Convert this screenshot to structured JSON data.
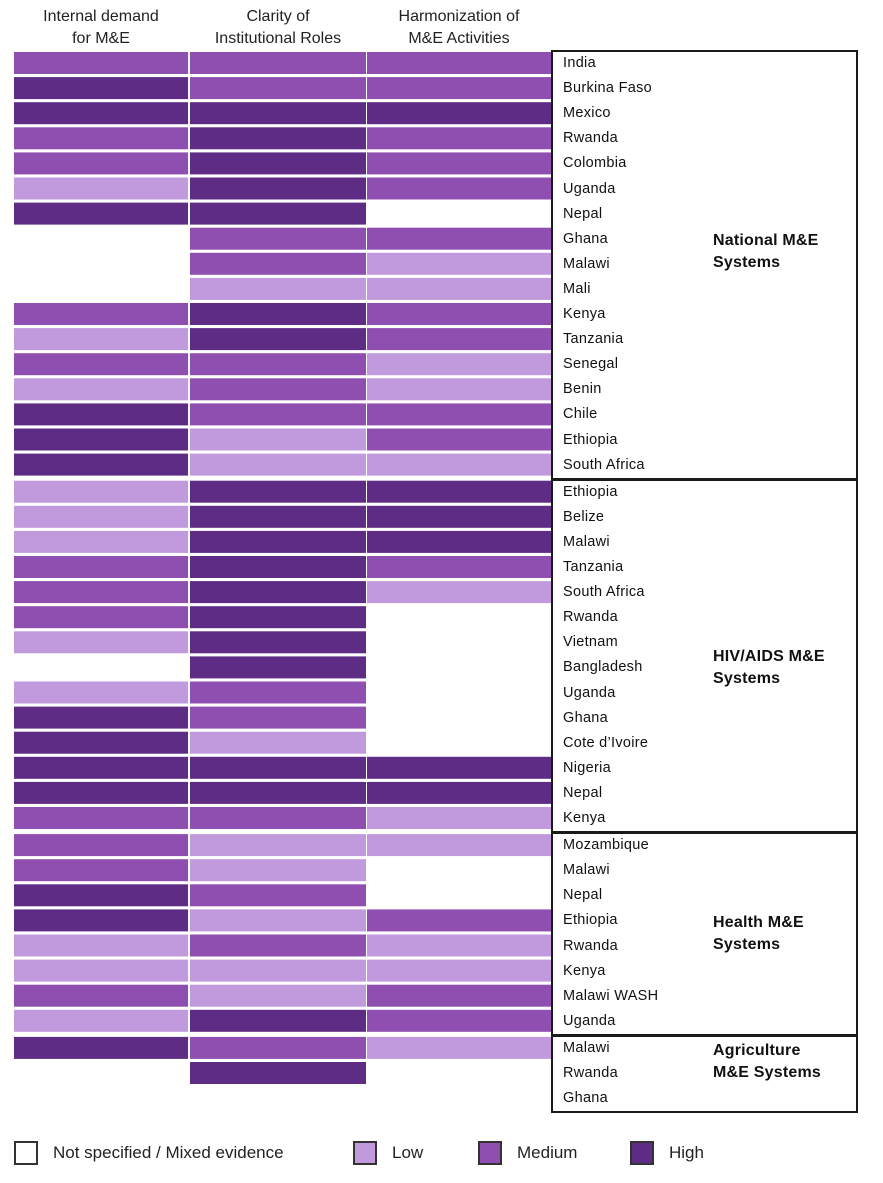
{
  "chart_data": {
    "type": "heatmap",
    "columns": [
      [
        "Internal demand",
        "for M&E"
      ],
      [
        "Clarity of",
        "Institutional Roles"
      ],
      [
        "Harmonization of",
        "M&E Activities"
      ]
    ],
    "levels": [
      "Not specified / Mixed evidence",
      "Low",
      "Medium",
      "High"
    ],
    "colors": [
      "#ffffff",
      "#c199dd",
      "#8f4fb0",
      "#5e2b85"
    ],
    "groups": [
      {
        "label": [
          "National M&E",
          "Systems"
        ],
        "rows": [
          {
            "country": "India",
            "values": [
              2,
              2,
              2
            ]
          },
          {
            "country": "Burkina Faso",
            "values": [
              3,
              2,
              2
            ]
          },
          {
            "country": "Mexico",
            "values": [
              3,
              3,
              3
            ]
          },
          {
            "country": "Rwanda",
            "values": [
              2,
              3,
              2
            ]
          },
          {
            "country": "Colombia",
            "values": [
              2,
              3,
              2
            ]
          },
          {
            "country": "Uganda",
            "values": [
              1,
              3,
              2
            ]
          },
          {
            "country": "Nepal",
            "values": [
              3,
              3,
              0
            ]
          },
          {
            "country": "Ghana",
            "values": [
              0,
              2,
              2
            ]
          },
          {
            "country": "Malawi",
            "values": [
              0,
              2,
              1
            ]
          },
          {
            "country": "Mali",
            "values": [
              0,
              1,
              1
            ]
          },
          {
            "country": "Kenya",
            "values": [
              2,
              3,
              2
            ]
          },
          {
            "country": "Tanzania",
            "values": [
              1,
              3,
              2
            ]
          },
          {
            "country": "Senegal",
            "values": [
              2,
              2,
              1
            ]
          },
          {
            "country": "Benin",
            "values": [
              1,
              2,
              1
            ]
          },
          {
            "country": "Chile",
            "values": [
              3,
              2,
              2
            ]
          },
          {
            "country": "Ethiopia",
            "values": [
              3,
              1,
              2
            ]
          },
          {
            "country": "South Africa",
            "values": [
              3,
              1,
              1
            ]
          }
        ]
      },
      {
        "label": [
          "HIV/AIDS M&E",
          "Systems"
        ],
        "rows": [
          {
            "country": "Ethiopia",
            "values": [
              1,
              3,
              3
            ]
          },
          {
            "country": "Belize",
            "values": [
              1,
              3,
              3
            ]
          },
          {
            "country": "Malawi",
            "values": [
              1,
              3,
              3
            ]
          },
          {
            "country": "Tanzania",
            "values": [
              2,
              3,
              2
            ]
          },
          {
            "country": "South Africa",
            "values": [
              2,
              3,
              1
            ]
          },
          {
            "country": "Rwanda",
            "values": [
              2,
              3,
              0
            ]
          },
          {
            "country": "Vietnam",
            "values": [
              1,
              3,
              0
            ]
          },
          {
            "country": "Bangladesh",
            "values": [
              0,
              3,
              0
            ]
          },
          {
            "country": "Uganda",
            "values": [
              1,
              2,
              0
            ]
          },
          {
            "country": "Ghana",
            "values": [
              3,
              2,
              0
            ]
          },
          {
            "country": "Cote d’Ivoire",
            "values": [
              3,
              1,
              0
            ]
          },
          {
            "country": "Nigeria",
            "values": [
              3,
              3,
              3
            ]
          },
          {
            "country": "Nepal",
            "values": [
              3,
              3,
              3
            ]
          },
          {
            "country": "Kenya",
            "values": [
              2,
              2,
              1
            ]
          }
        ]
      },
      {
        "label": [
          "Health M&E",
          "Systems"
        ],
        "rows": [
          {
            "country": "Mozambique",
            "values": [
              2,
              1,
              1
            ]
          },
          {
            "country": "Malawi",
            "values": [
              2,
              1,
              0
            ]
          },
          {
            "country": "Nepal",
            "values": [
              3,
              2,
              0
            ]
          },
          {
            "country": "Ethiopia",
            "values": [
              3,
              1,
              2
            ]
          },
          {
            "country": "Rwanda",
            "values": [
              1,
              2,
              1
            ]
          },
          {
            "country": "Kenya",
            "values": [
              1,
              1,
              1
            ]
          },
          {
            "country": "Malawi WASH",
            "values": [
              2,
              1,
              2
            ]
          },
          {
            "country": "Uganda",
            "values": [
              1,
              3,
              2
            ]
          }
        ]
      },
      {
        "label": [
          "Agriculture",
          "M&E Systems"
        ],
        "rows": [
          {
            "country": "Malawi",
            "values": [
              3,
              2,
              1
            ]
          },
          {
            "country": "Rwanda",
            "values": [
              0,
              3,
              0
            ]
          },
          {
            "country": "Ghana",
            "values": [
              0,
              0,
              0
            ]
          }
        ]
      }
    ]
  }
}
